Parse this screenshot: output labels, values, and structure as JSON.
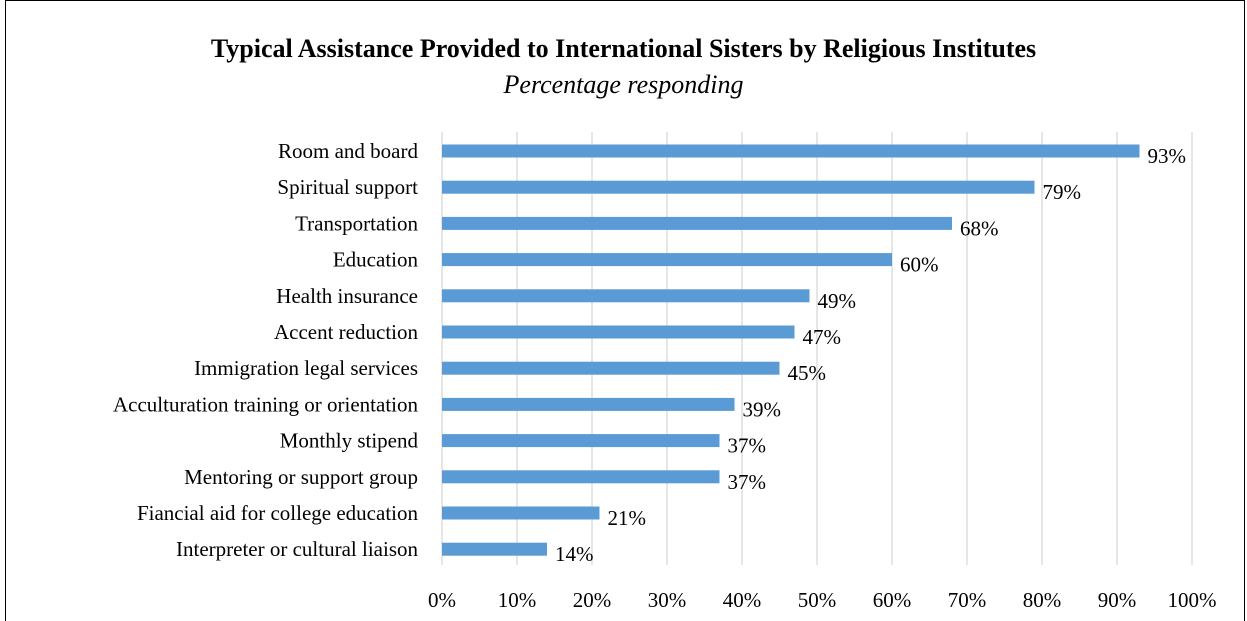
{
  "chart_data": {
    "type": "bar",
    "orientation": "horizontal",
    "title": "Typical Assistance Provided to International Sisters by Religious Institutes",
    "subtitle": "Percentage responding",
    "categories": [
      "Room and board",
      "Spiritual support",
      "Transportation",
      "Education",
      "Health insurance",
      "Accent reduction",
      "Immigration legal services",
      "Acculturation training or orientation",
      "Monthly stipend",
      "Mentoring or support group",
      "Fiancial aid for college education",
      "Interpreter or cultural liaison"
    ],
    "values": [
      93,
      79,
      68,
      60,
      49,
      47,
      45,
      39,
      37,
      37,
      21,
      14
    ],
    "value_labels": [
      "93%",
      "79%",
      "68%",
      "60%",
      "49%",
      "47%",
      "45%",
      "39%",
      "37%",
      "37%",
      "21%",
      "14%"
    ],
    "xlim": [
      0,
      100
    ],
    "x_ticks": [
      "0%",
      "10%",
      "20%",
      "30%",
      "40%",
      "50%",
      "60%",
      "70%",
      "80%",
      "90%",
      "100%"
    ],
    "grid": true,
    "bar_color": "#5b9bd5",
    "grid_color": "#d9d9d9"
  }
}
